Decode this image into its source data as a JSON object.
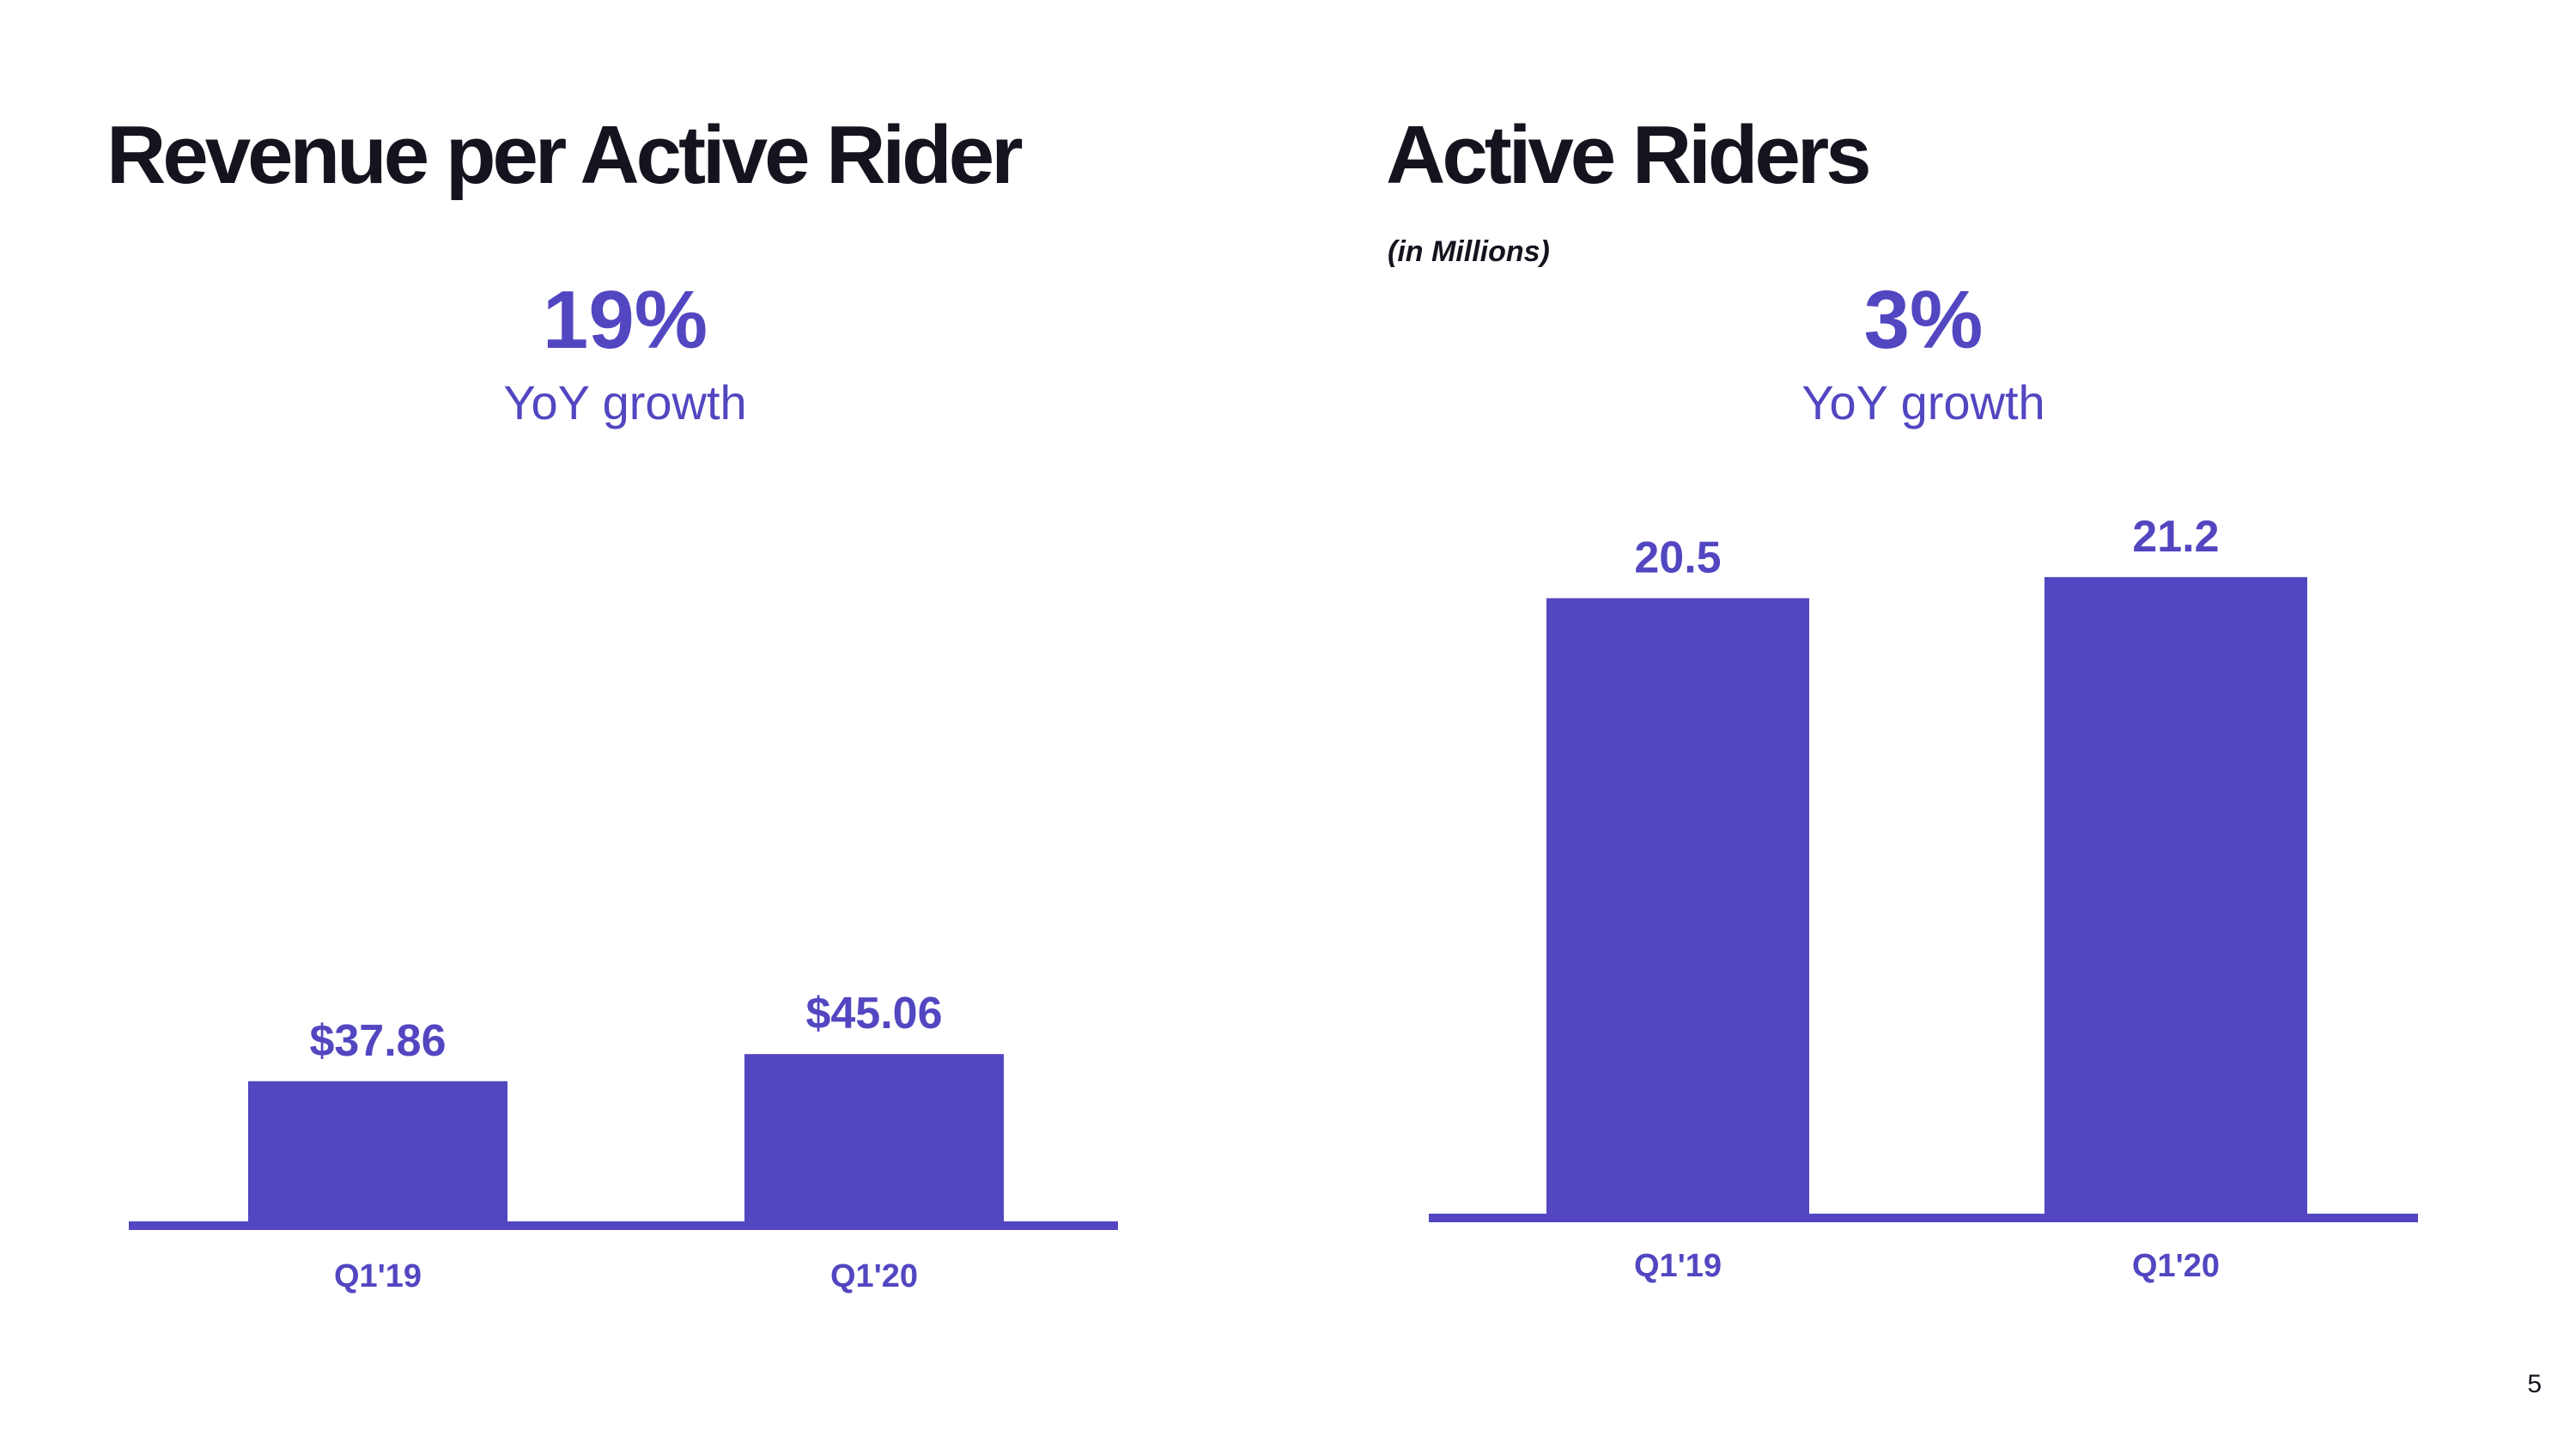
{
  "left_panel": {
    "title": "Revenue per Active Rider",
    "growth_value": "19%",
    "growth_label": "YoY growth"
  },
  "right_panel": {
    "title": "Active Riders",
    "subtitle": "(in Millions)",
    "growth_value": "3%",
    "growth_label": "YoY growth"
  },
  "page_number": "5",
  "colors": {
    "bar": "#5246c1",
    "text": "#14141f"
  },
  "chart_data": [
    {
      "type": "bar",
      "title": "Revenue per Active Rider",
      "categories": [
        "Q1'19",
        "Q1'20"
      ],
      "values": [
        37.86,
        45.06
      ],
      "data_labels": [
        "$37.86",
        "$45.06"
      ],
      "unit": "$",
      "grid": false
    },
    {
      "type": "bar",
      "title": "Active Riders",
      "subtitle": "(in Millions)",
      "categories": [
        "Q1'19",
        "Q1'20"
      ],
      "values": [
        20.5,
        21.2
      ],
      "data_labels": [
        "20.5",
        "21.2"
      ],
      "grid": false
    }
  ]
}
